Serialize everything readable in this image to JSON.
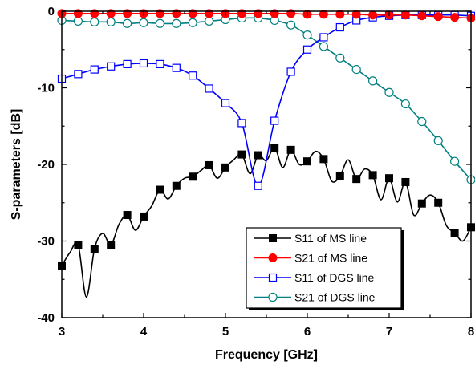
{
  "chart_data": {
    "type": "line",
    "title": "",
    "xlabel": "Frequency   [GHz]",
    "ylabel": "S-parameters   [dB]",
    "xlim": [
      3,
      8
    ],
    "ylim": [
      -40,
      0
    ],
    "x_ticks": [
      "3",
      "4",
      "5",
      "6",
      "7",
      "8"
    ],
    "y_ticks": [
      "0",
      "-10",
      "-20",
      "-30",
      "-40"
    ],
    "legend_position": "bottom-right",
    "grid": false,
    "series": [
      {
        "name": "S11 of MS line",
        "color": "#000000",
        "marker": "square-filled",
        "x": [
          3.0,
          3.1,
          3.2,
          3.3,
          3.4,
          3.5,
          3.6,
          3.7,
          3.8,
          3.9,
          4.0,
          4.1,
          4.2,
          4.3,
          4.4,
          4.5,
          4.6,
          4.7,
          4.8,
          4.9,
          5.0,
          5.1,
          5.2,
          5.3,
          5.4,
          5.5,
          5.6,
          5.7,
          5.8,
          5.9,
          6.0,
          6.1,
          6.2,
          6.3,
          6.4,
          6.5,
          6.6,
          6.7,
          6.8,
          6.9,
          7.0,
          7.1,
          7.2,
          7.3,
          7.4,
          7.5,
          7.6,
          7.7,
          7.8,
          7.9,
          8.0
        ],
        "values": [
          -33.2,
          -31.5,
          -30.5,
          -37.3,
          -31.0,
          -29.0,
          -30.5,
          -27.8,
          -26.6,
          -28.6,
          -26.8,
          -25.4,
          -23.3,
          -24.5,
          -22.8,
          -21.8,
          -21.6,
          -20.8,
          -20.1,
          -21.8,
          -20.4,
          -19.4,
          -18.7,
          -21.2,
          -18.8,
          -19.5,
          -17.8,
          -20.4,
          -18.1,
          -20.0,
          -19.6,
          -18.3,
          -19.3,
          -22.2,
          -21.5,
          -19.4,
          -21.9,
          -20.6,
          -21.4,
          -24.6,
          -21.8,
          -24.9,
          -22.3,
          -26.6,
          -25.1,
          -24.0,
          -25.0,
          -28.0,
          -28.9,
          -30.0,
          -28.2
        ],
        "marker_x": [
          3.0,
          3.2,
          3.4,
          3.6,
          3.8,
          4.0,
          4.2,
          4.4,
          4.6,
          4.8,
          5.0,
          5.2,
          5.4,
          5.6,
          5.8,
          6.0,
          6.2,
          6.4,
          6.6,
          6.8,
          7.0,
          7.2,
          7.4,
          7.6,
          7.8,
          8.0
        ],
        "marker_values": [
          -33.2,
          -30.5,
          -31.0,
          -30.5,
          -26.6,
          -26.8,
          -23.3,
          -22.8,
          -21.6,
          -20.1,
          -20.4,
          -18.7,
          -18.8,
          -17.8,
          -18.1,
          -19.6,
          -19.3,
          -21.5,
          -21.9,
          -21.4,
          -21.8,
          -22.3,
          -25.1,
          -25.0,
          -28.9,
          -28.2
        ]
      },
      {
        "name": "S21 of MS line",
        "color": "#ff0000",
        "marker": "circle-filled",
        "x": [
          3.0,
          3.2,
          3.4,
          3.6,
          3.8,
          4.0,
          4.2,
          4.4,
          4.6,
          4.8,
          5.0,
          5.2,
          5.4,
          5.6,
          5.8,
          6.0,
          6.2,
          6.4,
          6.6,
          6.8,
          7.0,
          7.2,
          7.4,
          7.6,
          7.8,
          8.0
        ],
        "values": [
          -0.3,
          -0.3,
          -0.3,
          -0.3,
          -0.3,
          -0.3,
          -0.3,
          -0.3,
          -0.3,
          -0.3,
          -0.3,
          -0.3,
          -0.3,
          -0.3,
          -0.3,
          -0.4,
          -0.4,
          -0.4,
          -0.4,
          -0.5,
          -0.5,
          -0.5,
          -0.6,
          -0.7,
          -0.8,
          -0.9
        ]
      },
      {
        "name": "S11 of DGS line",
        "color": "#0000ff",
        "marker": "square-open",
        "x": [
          3.0,
          3.2,
          3.4,
          3.6,
          3.8,
          4.0,
          4.2,
          4.4,
          4.6,
          4.8,
          5.0,
          5.2,
          5.4,
          5.6,
          5.8,
          6.0,
          6.2,
          6.4,
          6.6,
          6.8,
          7.0,
          7.2,
          7.4,
          7.6,
          7.8,
          8.0
        ],
        "values": [
          -8.8,
          -8.2,
          -7.6,
          -7.2,
          -6.9,
          -6.8,
          -6.9,
          -7.4,
          -8.4,
          -10.1,
          -12.0,
          -14.6,
          -22.8,
          -14.3,
          -7.9,
          -5.0,
          -3.4,
          -2.1,
          -1.2,
          -0.8,
          -0.6,
          -0.5,
          -0.5,
          -0.5,
          -0.5,
          -0.6
        ]
      },
      {
        "name": "S21 of DGS line",
        "color": "#008080",
        "marker": "circle-open",
        "x": [
          3.0,
          3.2,
          3.4,
          3.6,
          3.8,
          4.0,
          4.2,
          4.4,
          4.6,
          4.8,
          5.0,
          5.2,
          5.4,
          5.6,
          5.8,
          6.0,
          6.2,
          6.4,
          6.6,
          6.8,
          7.0,
          7.2,
          7.4,
          7.6,
          7.8,
          8.0
        ],
        "values": [
          -1.2,
          -1.3,
          -1.4,
          -1.4,
          -1.6,
          -1.5,
          -1.6,
          -1.6,
          -1.5,
          -1.3,
          -1.1,
          -0.9,
          -0.9,
          -1.2,
          -1.8,
          -3.1,
          -4.6,
          -6.1,
          -7.6,
          -9.1,
          -10.6,
          -12.1,
          -14.4,
          -16.9,
          -19.6,
          -22.0
        ]
      }
    ]
  }
}
